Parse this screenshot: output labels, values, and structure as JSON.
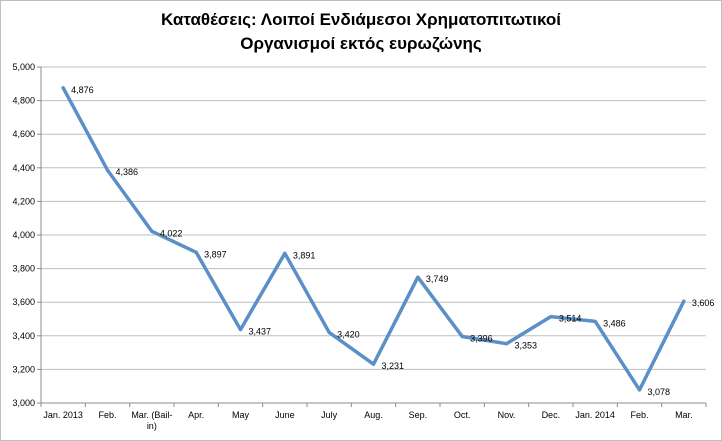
{
  "chart_data": {
    "type": "line",
    "title_lines": [
      "Καταθέσεις: Λοιποί Ενδιάμεσοι Χρηματοπιτωτικοί",
      "Οργανισμοί εκτός ευρωζώνης"
    ],
    "categories": [
      "Jan. 2013",
      "Feb.",
      "Mar. (Bail-\nin)",
      "Apr.",
      "May",
      "June",
      "July",
      "Aug.",
      "Sep.",
      "Oct.",
      "Nov.",
      "Dec.",
      "Jan. 2014",
      "Feb.",
      "Mar."
    ],
    "values": [
      4876,
      4386,
      4022,
      3897,
      3437,
      3891,
      3420,
      3231,
      3749,
      3396,
      3353,
      3514,
      3486,
      3078,
      3606
    ],
    "value_labels": [
      "4,876",
      "4,386",
      "4,022",
      "3,897",
      "3,437",
      "3,891",
      "3,420",
      "3,231",
      "3,749",
      "3,396",
      "3,353",
      "3,514",
      "3,486",
      "3,078",
      "3,606"
    ],
    "y_ticks": [
      "3,000",
      "3,200",
      "3,400",
      "3,600",
      "3,800",
      "4,000",
      "4,200",
      "4,400",
      "4,600",
      "4,800",
      "5,000"
    ],
    "ylim": [
      3000,
      5000
    ],
    "grid": true,
    "legend": "none",
    "line_color": "#5b8fc7"
  }
}
